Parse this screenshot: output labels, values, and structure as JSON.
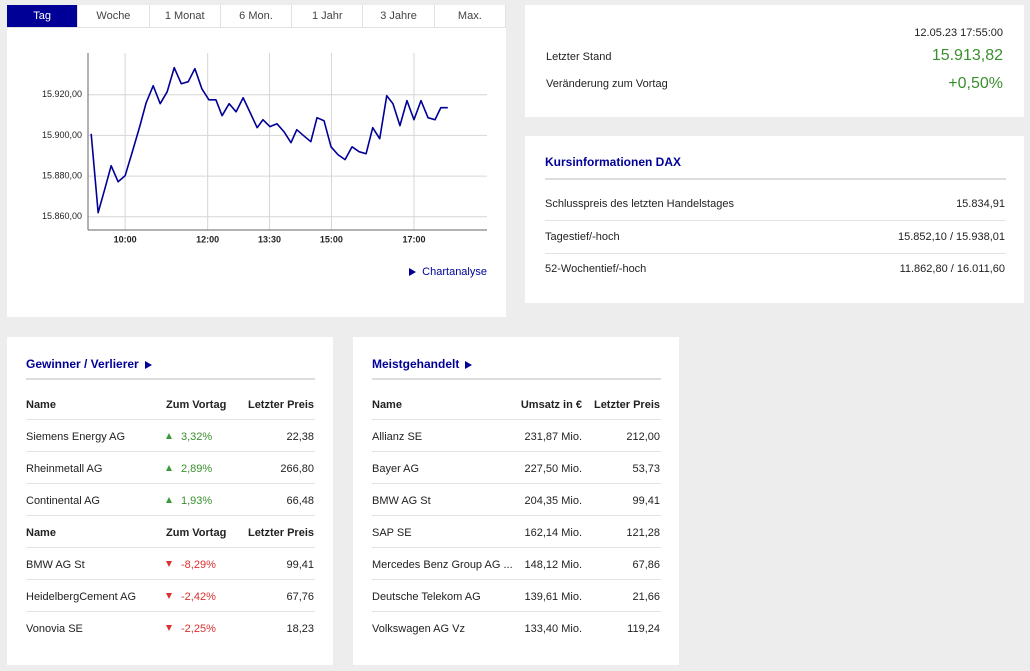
{
  "tabs": [
    "Tag",
    "Woche",
    "1 Monat",
    "6 Mon.",
    "1 Jahr",
    "3 Jahre",
    "Max."
  ],
  "chart": {
    "type": "line",
    "color": "#000096",
    "grid": true,
    "x": [
      9.177,
      9.346,
      9.516,
      9.661,
      9.83,
      10.0,
      10.19,
      10.36,
      10.51,
      10.68,
      10.85,
      11.02,
      11.19,
      11.36,
      11.53,
      11.69,
      11.86,
      12.03,
      12.2,
      12.35,
      12.52,
      12.69,
      12.86,
      13.03,
      13.2,
      13.34,
      13.51,
      13.68,
      13.85,
      14.02,
      14.16,
      14.33,
      14.5,
      14.65,
      14.82,
      14.99,
      15.16,
      15.33,
      15.5,
      15.67,
      15.84,
      16.0,
      16.17,
      16.34,
      16.49,
      16.66,
      16.83,
      17.0,
      17.17,
      17.34,
      17.51,
      17.65,
      17.82
    ],
    "values": [
      15900.8,
      15862.0,
      15874.3,
      15885.1,
      15877.2,
      15880.2,
      15893.0,
      15904.8,
      15916.1,
      15924.4,
      15915.6,
      15921.5,
      15933.3,
      15925.4,
      15926.4,
      15932.8,
      15922.9,
      15917.5,
      15917.5,
      15909.7,
      15915.6,
      15911.6,
      15918.5,
      15911.2,
      15903.8,
      15907.7,
      15904.3,
      15905.7,
      15901.8,
      15896.4,
      15902.8,
      15899.8,
      15896.9,
      15908.7,
      15907.2,
      15894.4,
      15890.5,
      15888.1,
      15894.4,
      15892.0,
      15891.0,
      15903.8,
      15898.4,
      15919.5,
      15915.6,
      15904.8,
      15917.1,
      15907.7,
      15917.1,
      15908.7,
      15907.7,
      15913.6,
      15913.6
    ],
    "xlim": [
      9.1,
      18.77
    ],
    "ylim": [
      15853.5,
      15940.5
    ],
    "xticks": [
      {
        "value": 10,
        "label": "10:00"
      },
      {
        "value": 12,
        "label": "12:00"
      },
      {
        "value": 13.5,
        "label": "13:30"
      },
      {
        "value": 15,
        "label": "15:00"
      },
      {
        "value": 17,
        "label": "17:00"
      }
    ],
    "yticks": [
      {
        "value": 15860,
        "label": "15.860,00"
      },
      {
        "value": 15880,
        "label": "15.880,00"
      },
      {
        "value": 15900,
        "label": "15.900,00"
      },
      {
        "value": 15920,
        "label": "15.920,00"
      }
    ]
  },
  "chart_link": "Chartanalyse",
  "quote": {
    "timestamp": "12.05.23 17:55:00",
    "rows": [
      {
        "label": "Letzter Stand",
        "value": "15.913,82"
      },
      {
        "label": "Veränderung zum Vortag",
        "value": "+0,50%"
      }
    ]
  },
  "info": {
    "title": "Kursinformationen DAX",
    "rows": [
      [
        "Schlusspreis des letzten Handelstages",
        "15.834,91"
      ],
      [
        "Tagestief/-hoch",
        "15.852,10 / 15.938,01"
      ],
      [
        "52-Wochentief/-hoch",
        "11.862,80 / 16.011,60"
      ]
    ]
  },
  "movers": {
    "title": "Gewinner / Verlierer",
    "groups": [
      {
        "header": [
          "Name",
          "Zum Vortag",
          "Letzter Preis"
        ],
        "rows": [
          [
            "Siemens Energy AG",
            "3,32%",
            "22,38"
          ],
          [
            "Rheinmetall AG",
            "2,89%",
            "266,80"
          ],
          [
            "Continental AG",
            "1,93%",
            "66,48"
          ]
        ]
      },
      {
        "header": [
          "Name",
          "Zum Vortag",
          "Letzter Preis"
        ],
        "rows": [
          [
            "BMW AG St",
            "-8,29%",
            "99,41"
          ],
          [
            "HeidelbergCement AG",
            "-2,42%",
            "67,76"
          ],
          [
            "Vonovia SE",
            "-2,25%",
            "18,23"
          ]
        ]
      }
    ]
  },
  "most_traded": {
    "title": "Meistgehandelt",
    "header": [
      "Name",
      "Umsatz in €",
      "Letzter Preis"
    ],
    "rows": [
      [
        "Allianz SE",
        "231,87 Mio.",
        "212,00"
      ],
      [
        "Bayer AG",
        "227,50 Mio.",
        "53,73"
      ],
      [
        "BMW AG St",
        "204,35 Mio.",
        "99,41"
      ],
      [
        "SAP SE",
        "162,14 Mio.",
        "121,28"
      ],
      [
        "Mercedes Benz Group AG ...",
        "148,12 Mio.",
        "67,86"
      ],
      [
        "Deutsche Telekom AG",
        "139,61 Mio.",
        "21,66"
      ],
      [
        "Volkswagen AG Vz",
        "133,40 Mio.",
        "119,24"
      ]
    ]
  }
}
